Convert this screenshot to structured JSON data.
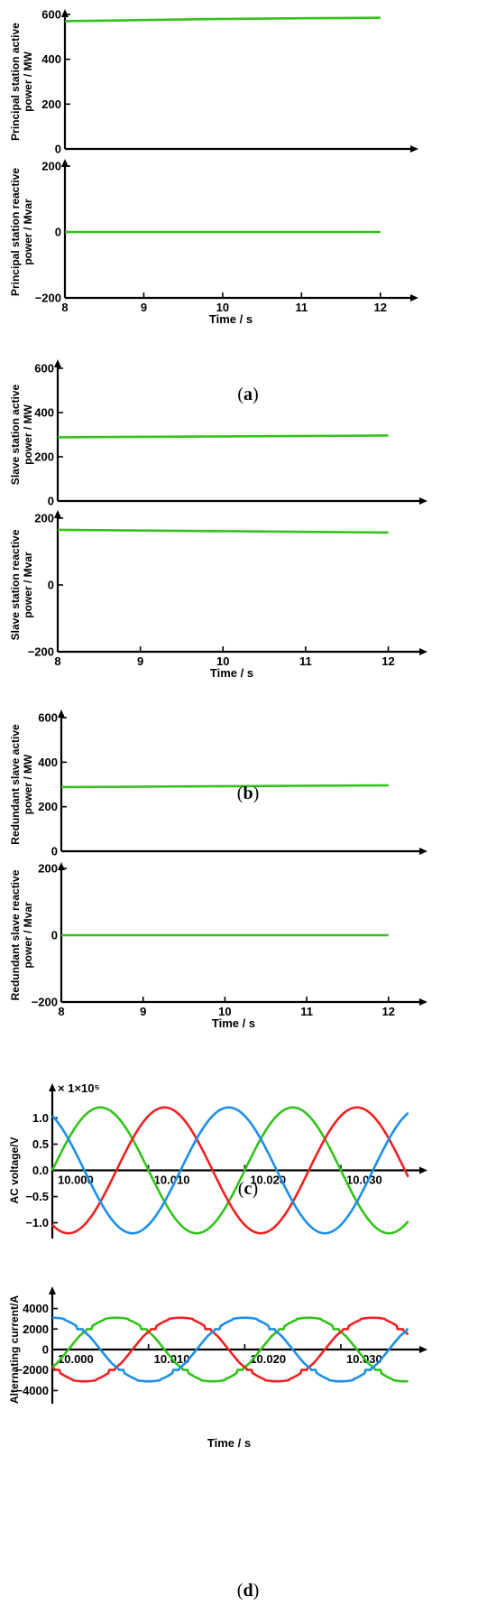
{
  "colors": {
    "green": "#33c21b",
    "red": "#ee2222",
    "blue": "#1e8fe6",
    "axis": "#000000"
  },
  "chart_data": [
    {
      "id": "a1",
      "type": "line",
      "ylabel_lines": [
        "Principal station active",
        "power / MW"
      ],
      "x": [
        8,
        12
      ],
      "xlim": [
        8,
        12.3
      ],
      "ylim": [
        0,
        600
      ],
      "yticks": [
        0,
        200,
        400,
        600
      ],
      "ytick_labels": [
        "0",
        "200",
        "400",
        "600"
      ],
      "series": [
        {
          "color": "green",
          "x": [
            8,
            9,
            10,
            11,
            12
          ],
          "y": [
            570,
            575,
            580,
            583,
            585
          ]
        }
      ]
    },
    {
      "id": "a2",
      "type": "line",
      "ylabel_lines": [
        "Principal station reactive",
        "power / Mvar"
      ],
      "xlim": [
        8,
        12.3
      ],
      "ylim": [
        -200,
        200
      ],
      "yticks": [
        -200,
        0,
        200
      ],
      "ytick_labels": [
        "−200",
        "0",
        "200"
      ],
      "xticks": [
        8,
        9,
        10,
        11,
        12
      ],
      "xtick_labels": [
        "8",
        "9",
        "10",
        "11",
        "12"
      ],
      "xlabel": "Time / s",
      "series": [
        {
          "color": "green",
          "x": [
            8,
            12
          ],
          "y": [
            0,
            0
          ]
        }
      ]
    },
    {
      "id": "b1",
      "type": "line",
      "ylabel_lines": [
        "Slave station active",
        "power / MW"
      ],
      "xlim": [
        8,
        12.3
      ],
      "ylim": [
        0,
        600
      ],
      "yticks": [
        0,
        200,
        400,
        600
      ],
      "ytick_labels": [
        "0",
        "200",
        "400",
        "600"
      ],
      "series": [
        {
          "color": "green",
          "x": [
            8,
            9,
            10,
            11,
            12
          ],
          "y": [
            288,
            290,
            292,
            294,
            296
          ]
        }
      ]
    },
    {
      "id": "b2",
      "type": "line",
      "ylabel_lines": [
        "Slave station reactive",
        "power / Mvar"
      ],
      "xlim": [
        8,
        12.3
      ],
      "ylim": [
        -200,
        200
      ],
      "yticks": [
        -200,
        0,
        200
      ],
      "ytick_labels": [
        "−200",
        "0",
        "200"
      ],
      "xticks": [
        8,
        9,
        10,
        11,
        12
      ],
      "xtick_labels": [
        "8",
        "9",
        "10",
        "11",
        "12"
      ],
      "xlabel": "Time / s",
      "series": [
        {
          "color": "green",
          "x": [
            8,
            9,
            10,
            11,
            12
          ],
          "y": [
            165,
            163,
            161,
            159,
            157
          ]
        }
      ]
    },
    {
      "id": "c1",
      "type": "line",
      "ylabel_lines": [
        "Redundant slave active",
        "power / MW"
      ],
      "xlim": [
        8,
        12.3
      ],
      "ylim": [
        0,
        600
      ],
      "yticks": [
        0,
        200,
        400,
        600
      ],
      "ytick_labels": [
        "0",
        "200",
        "400",
        "600"
      ],
      "series": [
        {
          "color": "green",
          "x": [
            8,
            9,
            10,
            11,
            12
          ],
          "y": [
            288,
            290,
            292,
            294,
            296
          ]
        }
      ]
    },
    {
      "id": "c2",
      "type": "line",
      "ylabel_lines": [
        "Redundant slave reactive",
        "power / Mvar"
      ],
      "xlim": [
        8,
        12.3
      ],
      "ylim": [
        -200,
        200
      ],
      "yticks": [
        -200,
        0,
        200
      ],
      "ytick_labels": [
        "−200",
        "0",
        "200"
      ],
      "xticks": [
        8,
        9,
        10,
        11,
        12
      ],
      "xtick_labels": [
        "8",
        "9",
        "10",
        "11",
        "12"
      ],
      "xlabel": "Time / s",
      "series": [
        {
          "color": "green",
          "x": [
            8,
            12
          ],
          "y": [
            0,
            0
          ]
        }
      ]
    },
    {
      "id": "d1",
      "type": "line",
      "ylabel_lines": [
        "AC voltage/V"
      ],
      "multiplier": "× 1×10⁵",
      "xlim": [
        10.0,
        10.0375
      ],
      "ylim": [
        -1.3,
        1.3
      ],
      "yticks": [
        -1.0,
        -0.5,
        0.0,
        0.5,
        1.0
      ],
      "ytick_labels": [
        "−1.0",
        "−0.5",
        "0.0",
        "0.5",
        "1.0"
      ],
      "xticks": [
        10.0,
        10.01,
        10.02,
        10.03
      ],
      "xtick_labels": [
        "10.000",
        "10.010",
        "10.020",
        "10.030"
      ],
      "waveform": "sine",
      "amplitude": 1.2,
      "frequency": 50,
      "t0": 10.0,
      "t1": 10.037,
      "series": [
        {
          "color": "green",
          "phase_deg": 0
        },
        {
          "color": "red",
          "phase_deg": -120
        },
        {
          "color": "blue",
          "phase_deg": 120
        }
      ]
    },
    {
      "id": "d2",
      "type": "line",
      "ylabel_lines": [
        "Alternating current/A"
      ],
      "xlim": [
        10.0,
        10.0375
      ],
      "ylim": [
        -4400,
        4400
      ],
      "yticks": [
        -4000,
        -2000,
        0,
        2000,
        4000
      ],
      "ytick_labels": [
        "−4000",
        "−2000",
        "0",
        "2000",
        "4000"
      ],
      "xticks": [
        10.0,
        10.01,
        10.02,
        10.03
      ],
      "xtick_labels": [
        "10.000",
        "10.010",
        "10.020",
        "10.030"
      ],
      "xlabel": "Time / s",
      "waveform": "distorted-sine",
      "amplitude": 3100,
      "frequency": 50,
      "t0": 10.0,
      "t1": 10.037,
      "series": [
        {
          "color": "green",
          "phase_deg": -30
        },
        {
          "color": "red",
          "phase_deg": -150
        },
        {
          "color": "blue",
          "phase_deg": 90
        }
      ]
    }
  ],
  "captions": [
    {
      "open": "(",
      "letter": "a",
      "close": ")"
    },
    {
      "open": "(",
      "letter": "b",
      "close": ")"
    },
    {
      "open": "(",
      "letter": "c",
      "close": ")"
    },
    {
      "open": "(",
      "letter": "d",
      "close": ")"
    }
  ]
}
